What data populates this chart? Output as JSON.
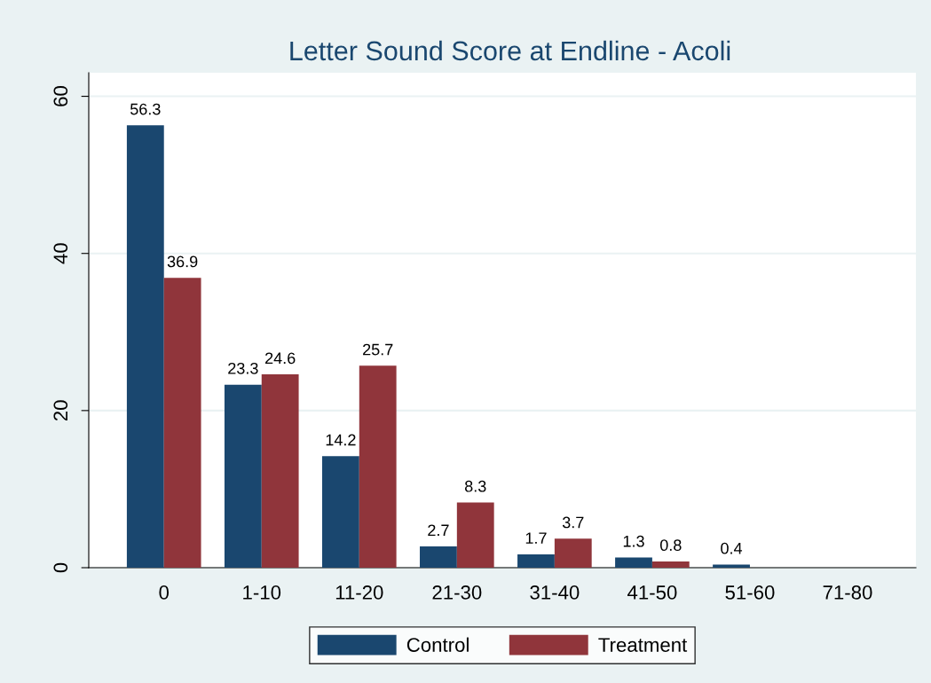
{
  "chart_data": {
    "type": "bar",
    "title": "Letter Sound Score at Endline - Acoli",
    "categories": [
      "0",
      "1-10",
      "11-20",
      "21-30",
      "31-40",
      "41-50",
      "51-60",
      "71-80"
    ],
    "series": [
      {
        "name": "Control",
        "color": "#1a476f",
        "values": [
          56.3,
          23.3,
          14.2,
          2.7,
          1.7,
          1.3,
          0.4,
          null
        ]
      },
      {
        "name": "Treatment",
        "color": "#90353b",
        "values": [
          36.9,
          24.6,
          25.7,
          8.3,
          3.7,
          0.8,
          null,
          null
        ]
      }
    ],
    "ylim": [
      0,
      63
    ],
    "yticks": [
      0,
      20,
      40,
      60
    ],
    "grid": "y",
    "legend": "bottom",
    "data_labels": true
  }
}
